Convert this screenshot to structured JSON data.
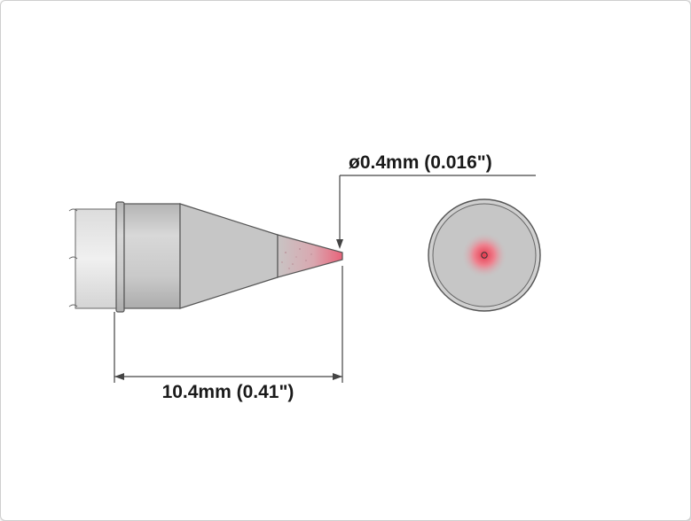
{
  "diagram": {
    "tip_diameter_label": "ø0.4mm (0.016\")",
    "length_label": "10.4mm (0.41\")",
    "colors": {
      "body_fill": "#c6c6c6",
      "body_stroke": "#555555",
      "tip_hot": "#e9637a",
      "dimension_line": "#444444"
    }
  }
}
